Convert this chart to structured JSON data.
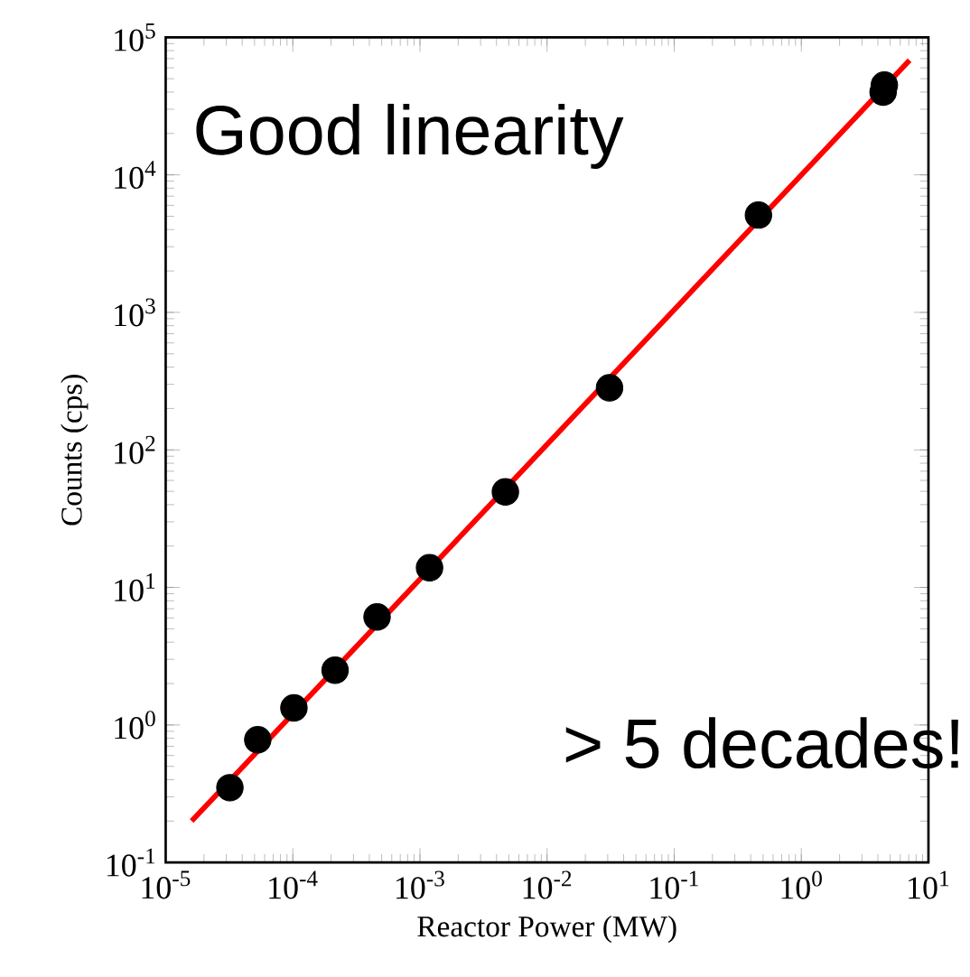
{
  "chart_data": {
    "type": "scatter",
    "xlabel": "Reactor Power (MW)",
    "ylabel": "Counts (cps)",
    "log": "xy",
    "grid": false,
    "xlim": [
      1e-05,
      10
    ],
    "ylim": [
      0.1,
      100000
    ],
    "xticks": [
      {
        "value": 1e-05,
        "label": "10$^{-5}$"
      },
      {
        "value": 0.0001,
        "label": "10$^{-4}$"
      },
      {
        "value": 0.001,
        "label": "10$^{-3}$"
      },
      {
        "value": 0.01,
        "label": "10$^{-2}$"
      },
      {
        "value": 0.1,
        "label": "10$^{-1}$"
      },
      {
        "value": 1,
        "label": "10$^{0}$"
      },
      {
        "value": 10,
        "label": "10$^{1}$"
      }
    ],
    "yticks": [
      {
        "value": 0.1,
        "label": "10$^{-1}$"
      },
      {
        "value": 1,
        "label": "10$^{0}$"
      },
      {
        "value": 10,
        "label": "10$^{1}$"
      },
      {
        "value": 100,
        "label": "10$^{2}$"
      },
      {
        "value": 1000,
        "label": "10$^{3}$"
      },
      {
        "value": 10000,
        "label": "10$^{4}$"
      },
      {
        "value": 100000,
        "label": "10$^{5}$"
      }
    ],
    "series": [
      {
        "type": "line",
        "color": "#ff0000",
        "marker": "none",
        "x": [
          1.6e-05,
          7.1
        ],
        "values": [
          0.2,
          68000
        ]
      },
      {
        "type": "scatter",
        "color": "#000000",
        "marker": "circle",
        "x": [
          3.2e-05,
          5.3e-05,
          0.000102,
          0.000215,
          0.00046,
          0.00119,
          0.0047,
          0.031,
          0.46,
          4.4,
          4.5
        ],
        "values": [
          0.35,
          0.78,
          1.33,
          2.5,
          6.1,
          13.9,
          49.5,
          283,
          5100,
          40000,
          45000
        ]
      }
    ],
    "annotations": [
      "Good linearity",
      "> 5 decades!"
    ]
  }
}
